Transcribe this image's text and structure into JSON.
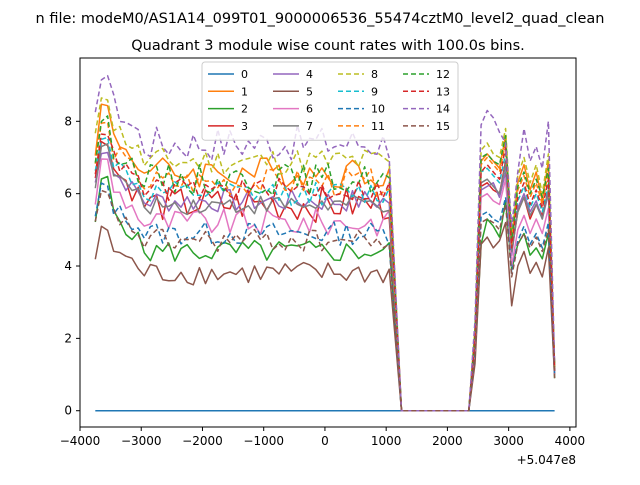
{
  "chart_data": {
    "type": "line",
    "suptitle": "n file: modeM0/AS1A14_099T01_9000006536_55474cztM0_level2_quad_clean",
    "title": "Quadrant 3 module wise count rates with 100.0s bins.",
    "xlabel": "",
    "ylabel": "",
    "x_offset_label": "+5.047e8",
    "xlim": [
      -4000,
      4100
    ],
    "ylim": [
      -0.45,
      9.75
    ],
    "xticks": [
      -4000,
      -3000,
      -2000,
      -1000,
      0,
      1000,
      2000,
      3000,
      4000
    ],
    "xtick_labels": [
      "−4000",
      "−3000",
      "−2000",
      "−1000",
      "0",
      "1000",
      "2000",
      "3000",
      "4000"
    ],
    "yticks": [
      0,
      2,
      4,
      6,
      8
    ],
    "ytick_labels": [
      "0",
      "2",
      "4",
      "6",
      "8"
    ],
    "legend": {
      "placement": "top-center",
      "columns": 4
    },
    "x_segment1": [
      -3750,
      -3650,
      -3550,
      -3450,
      -3350,
      -3250,
      -3150,
      -3050,
      -2950,
      -2850,
      -2750,
      -2650,
      -2550,
      -2450,
      -2350,
      -2250,
      -2150,
      -2050,
      -1950,
      -1850,
      -1750,
      -1650,
      -1550,
      -1450,
      -1350,
      -1250,
      -1150,
      -1050,
      -950,
      -850,
      -750,
      -650,
      -550,
      -450,
      -350,
      -250,
      -150,
      -50,
      50,
      150,
      250,
      350,
      450,
      550,
      650,
      750,
      850,
      950,
      1050
    ],
    "x_segment2": [
      2450,
      2550,
      2650,
      2750,
      2850,
      2950,
      3050,
      3150,
      3250,
      3350,
      3450,
      3550,
      3650,
      3750
    ],
    "gap": {
      "x_start": 1150,
      "x_end": 2350,
      "drop_points": [
        1250,
        2350
      ]
    },
    "series": [
      {
        "name": "0",
        "color": "#1f77b4",
        "dashed": false,
        "level": 0.0,
        "peak": 0.0,
        "variation": 0.0,
        "seg2": [
          0,
          0,
          0,
          0,
          0,
          0,
          0,
          0,
          0,
          0,
          0,
          0,
          0,
          0
        ]
      },
      {
        "name": "1",
        "color": "#ff7f0e",
        "dashed": false,
        "level": 6.6,
        "peak": 8.4,
        "variation": 0.4,
        "seg2": [
          2.2,
          6.9,
          7.1,
          6.9,
          6.7,
          7.6,
          4.7,
          6.3,
          6.8,
          6.1,
          6.6,
          5.8,
          6.9,
          1.2
        ]
      },
      {
        "name": "2",
        "color": "#2ca02c",
        "dashed": false,
        "level": 4.4,
        "peak": 6.4,
        "variation": 0.3,
        "seg2": [
          1.5,
          4.6,
          5.3,
          5.1,
          4.8,
          5.8,
          3.9,
          4.6,
          4.9,
          4.3,
          4.5,
          4.2,
          4.9,
          0.9
        ]
      },
      {
        "name": "3",
        "color": "#d62728",
        "dashed": false,
        "level": 5.7,
        "peak": 7.5,
        "variation": 0.45,
        "seg2": [
          1.9,
          6.2,
          6.3,
          6.1,
          6.0,
          6.9,
          4.4,
          5.5,
          5.9,
          5.3,
          5.7,
          5.4,
          6.1,
          1.1
        ]
      },
      {
        "name": "4",
        "color": "#9467bd",
        "dashed": false,
        "level": 5.8,
        "peak": 7.2,
        "variation": 0.3,
        "seg2": [
          1.9,
          6.1,
          6.2,
          6.3,
          5.9,
          6.6,
          4.3,
          5.6,
          6.0,
          5.5,
          5.8,
          5.3,
          6.0,
          1.1
        ]
      },
      {
        "name": "5",
        "color": "#8c564b",
        "dashed": false,
        "level": 3.8,
        "peak": 5.0,
        "variation": 0.3,
        "seg2": [
          1.3,
          4.6,
          4.8,
          4.5,
          4.7,
          5.2,
          2.9,
          4.0,
          4.4,
          3.8,
          4.1,
          3.7,
          4.5,
          0.9
        ]
      },
      {
        "name": "6",
        "color": "#e377c2",
        "dashed": false,
        "level": 5.2,
        "peak": 6.9,
        "variation": 0.35,
        "seg2": [
          1.7,
          5.9,
          6.0,
          5.8,
          5.7,
          6.4,
          4.0,
          5.0,
          5.4,
          4.9,
          5.3,
          4.9,
          5.6,
          1.0
        ]
      },
      {
        "name": "7",
        "color": "#7f7f7f",
        "dashed": false,
        "level": 5.7,
        "peak": 7.3,
        "variation": 0.25,
        "seg2": [
          1.9,
          6.3,
          6.4,
          6.2,
          6.0,
          6.8,
          4.4,
          5.5,
          5.9,
          5.4,
          5.7,
          5.3,
          6.1,
          1.1
        ]
      },
      {
        "name": "8",
        "color": "#bcbd22",
        "dashed": true,
        "level": 6.9,
        "peak": 8.7,
        "variation": 0.35,
        "seg2": [
          2.3,
          7.2,
          7.4,
          7.1,
          7.0,
          7.8,
          4.9,
          6.5,
          7.0,
          6.3,
          6.8,
          6.0,
          7.1,
          1.2
        ]
      },
      {
        "name": "9",
        "color": "#17becf",
        "dashed": true,
        "level": 6.0,
        "peak": 7.6,
        "variation": 0.3,
        "seg2": [
          2.0,
          6.6,
          6.7,
          6.5,
          6.3,
          7.1,
          4.5,
          5.8,
          6.2,
          5.6,
          6.0,
          5.5,
          6.3,
          1.1
        ]
      },
      {
        "name": "10",
        "color": "#1f77b4",
        "dashed": true,
        "level": 4.9,
        "peak": 6.2,
        "variation": 0.3,
        "seg2": [
          1.6,
          5.4,
          5.5,
          5.3,
          5.2,
          5.9,
          3.8,
          4.7,
          5.1,
          4.6,
          4.9,
          4.5,
          5.2,
          1.0
        ]
      },
      {
        "name": "11",
        "color": "#ff7f0e",
        "dashed": true,
        "level": 6.3,
        "peak": 7.9,
        "variation": 0.35,
        "seg2": [
          2.1,
          6.8,
          7.0,
          6.8,
          6.6,
          7.4,
          4.6,
          6.1,
          6.5,
          5.9,
          6.3,
          5.7,
          6.6,
          1.2
        ]
      },
      {
        "name": "12",
        "color": "#2ca02c",
        "dashed": true,
        "level": 6.4,
        "peak": 8.0,
        "variation": 0.4,
        "seg2": [
          2.1,
          7.0,
          7.1,
          6.9,
          6.8,
          7.6,
          4.7,
          6.2,
          6.6,
          6.0,
          6.4,
          5.9,
          6.7,
          1.2
        ]
      },
      {
        "name": "13",
        "color": "#d62728",
        "dashed": true,
        "level": 6.1,
        "peak": 7.7,
        "variation": 0.3,
        "seg2": [
          2.0,
          6.6,
          6.8,
          6.6,
          6.4,
          7.3,
          4.5,
          5.9,
          6.3,
          5.7,
          6.1,
          5.6,
          6.4,
          1.1
        ]
      },
      {
        "name": "14",
        "color": "#9467bd",
        "dashed": true,
        "level": 7.4,
        "peak": 9.3,
        "variation": 0.45,
        "seg2": [
          2.5,
          7.9,
          8.3,
          8.1,
          7.7,
          7.4,
          5.1,
          6.6,
          7.8,
          6.9,
          7.3,
          6.7,
          8.0,
          1.3
        ]
      },
      {
        "name": "15",
        "color": "#8c564b",
        "dashed": true,
        "level": 4.7,
        "peak": 6.0,
        "variation": 0.3,
        "seg2": [
          1.6,
          5.2,
          5.3,
          5.2,
          5.0,
          5.7,
          3.7,
          4.6,
          4.9,
          4.5,
          4.8,
          4.4,
          5.0,
          1.0
        ]
      }
    ]
  }
}
